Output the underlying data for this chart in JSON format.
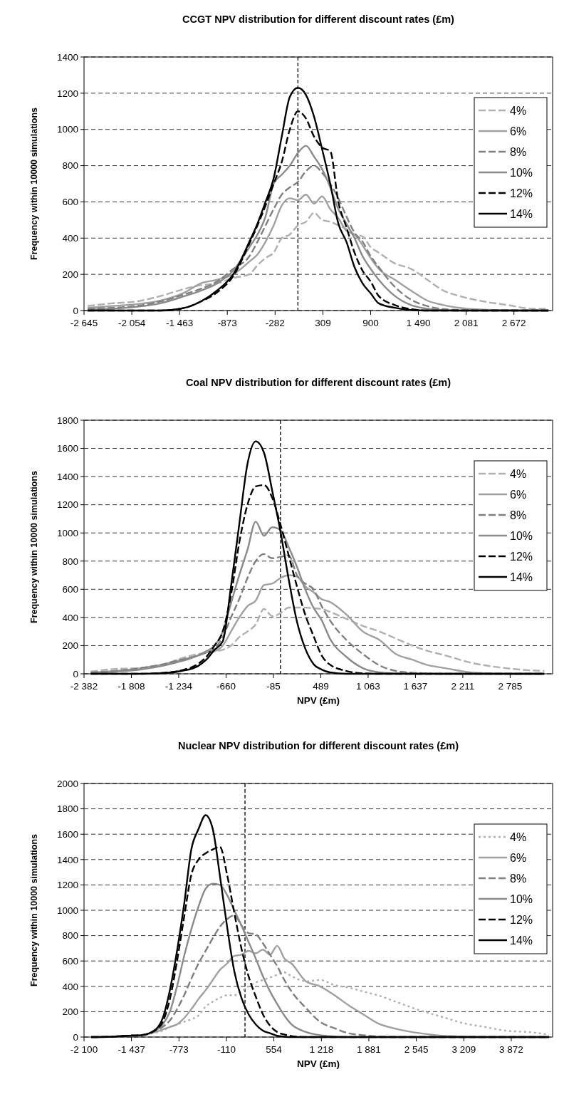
{
  "chart_data": [
    {
      "type": "line",
      "title": "CCGT NPV distribution for different discount rates (£m)",
      "ylabel": "Frequency within 10000 simulations",
      "x": [
        -2600,
        -2300,
        -2000,
        -1700,
        -1400,
        -1200,
        -1000,
        -800,
        -600,
        -500,
        -400,
        -300,
        -200,
        -100,
        0,
        100,
        200,
        300,
        400,
        500,
        600,
        700,
        800,
        900,
        1000,
        1200,
        1400,
        1600,
        1800,
        2000,
        2300,
        2600,
        2900,
        3100
      ],
      "series": [
        {
          "name": "4%",
          "color": "#b0b0b0",
          "line_style": "dashed",
          "values": [
            25,
            40,
            50,
            80,
            120,
            140,
            150,
            180,
            200,
            250,
            290,
            320,
            400,
            420,
            470,
            490,
            540,
            500,
            490,
            470,
            450,
            420,
            410,
            350,
            320,
            260,
            230,
            170,
            110,
            80,
            50,
            30,
            10,
            10
          ]
        },
        {
          "name": "6%",
          "color": "#a0a0a0",
          "line_style": "solid",
          "values": [
            15,
            25,
            35,
            55,
            100,
            150,
            170,
            200,
            270,
            310,
            380,
            470,
            580,
            620,
            610,
            640,
            590,
            630,
            560,
            510,
            440,
            420,
            360,
            290,
            230,
            170,
            110,
            55,
            30,
            15,
            5,
            2,
            0,
            0
          ]
        },
        {
          "name": "8%",
          "color": "#7f7f7f",
          "line_style": "dashed",
          "values": [
            10,
            15,
            25,
            50,
            90,
            120,
            160,
            230,
            300,
            380,
            470,
            560,
            640,
            680,
            710,
            770,
            800,
            760,
            700,
            620,
            520,
            430,
            380,
            300,
            240,
            130,
            60,
            25,
            8,
            3,
            0,
            0,
            0,
            0
          ]
        },
        {
          "name": "10%",
          "color": "#8a8a8a",
          "line_style": "solid",
          "values": [
            5,
            10,
            20,
            40,
            80,
            110,
            150,
            220,
            350,
            420,
            520,
            700,
            750,
            800,
            870,
            910,
            850,
            780,
            680,
            560,
            480,
            400,
            300,
            230,
            170,
            80,
            30,
            10,
            3,
            0,
            0,
            0,
            0,
            0
          ]
        },
        {
          "name": "12%",
          "color": "#000000",
          "line_style": "dashed",
          "values": [
            0,
            0,
            0,
            0,
            15,
            50,
            100,
            190,
            370,
            470,
            580,
            700,
            820,
            1000,
            1100,
            1060,
            960,
            900,
            880,
            600,
            460,
            320,
            220,
            160,
            80,
            30,
            8,
            0,
            0,
            0,
            0,
            0,
            0,
            0
          ]
        },
        {
          "name": "14%",
          "color": "#000000",
          "line_style": "solid",
          "values": [
            0,
            0,
            0,
            0,
            15,
            50,
            110,
            200,
            380,
            480,
            600,
            730,
            960,
            1180,
            1230,
            1190,
            1070,
            890,
            700,
            480,
            380,
            240,
            150,
            95,
            40,
            15,
            3,
            0,
            0,
            0,
            0,
            0,
            0,
            0
          ]
        }
      ],
      "xlim": [
        -2645,
        3150
      ],
      "xticks": [
        {
          "value": -2645,
          "label": "-2 645"
        },
        {
          "value": -2054,
          "label": "-2 054"
        },
        {
          "value": -1463,
          "label": "-1 463"
        },
        -873,
        -282,
        309,
        900,
        {
          "value": 1490,
          "label": "1 490"
        },
        {
          "value": 2081,
          "label": "2 081"
        },
        {
          "value": 2672,
          "label": "2 672"
        }
      ],
      "ylim": [
        0,
        1400
      ],
      "yticks": [
        0,
        200,
        400,
        600,
        800,
        1000,
        1200,
        1400
      ],
      "grid": "y",
      "legend": "right",
      "ref_lines": [
        {
          "axis": "x",
          "value": 0,
          "color": "#000000",
          "line_style": "dashed"
        }
      ]
    },
    {
      "type": "line",
      "title": "Coal NPV distribution for different discount rates (£m)",
      "xlabel": "NPV (£m)",
      "ylabel": "Frequency within 10000 simulations",
      "x": [
        -2300,
        -2000,
        -1700,
        -1400,
        -1200,
        -1000,
        -900,
        -800,
        -700,
        -600,
        -500,
        -400,
        -300,
        -200,
        -100,
        0,
        100,
        200,
        300,
        400,
        500,
        600,
        800,
        1000,
        1200,
        1400,
        1600,
        1800,
        2000,
        2300,
        2600,
        2900,
        3200
      ],
      "series": [
        {
          "name": "4%",
          "color": "#b0b0b0",
          "line_style": "dashed",
          "values": [
            15,
            35,
            40,
            70,
            110,
            140,
            150,
            160,
            170,
            200,
            260,
            300,
            350,
            460,
            410,
            430,
            470,
            470,
            470,
            465,
            460,
            440,
            390,
            340,
            300,
            250,
            200,
            160,
            130,
            80,
            50,
            30,
            20
          ]
        },
        {
          "name": "6%",
          "color": "#a0a0a0",
          "line_style": "solid",
          "values": [
            8,
            20,
            40,
            70,
            100,
            130,
            150,
            160,
            200,
            300,
            400,
            480,
            520,
            630,
            640,
            680,
            700,
            690,
            620,
            580,
            530,
            510,
            420,
            300,
            240,
            140,
            100,
            60,
            40,
            10,
            2,
            0,
            0
          ]
        },
        {
          "name": "8%",
          "color": "#7f7f7f",
          "line_style": "dashed",
          "values": [
            10,
            20,
            40,
            70,
            100,
            130,
            150,
            180,
            260,
            400,
            530,
            680,
            800,
            850,
            820,
            830,
            840,
            700,
            640,
            600,
            480,
            380,
            240,
            140,
            60,
            20,
            8,
            2,
            0,
            0,
            0,
            0,
            0
          ]
        },
        {
          "name": "10%",
          "color": "#8a8a8a",
          "line_style": "solid",
          "values": [
            5,
            15,
            30,
            60,
            90,
            130,
            160,
            200,
            300,
            500,
            700,
            880,
            1080,
            980,
            1040,
            1020,
            900,
            760,
            600,
            470,
            380,
            250,
            120,
            40,
            10,
            3,
            0,
            0,
            0,
            0,
            0,
            0,
            0
          ]
        },
        {
          "name": "12%",
          "color": "#000000",
          "line_style": "dashed",
          "values": [
            0,
            0,
            0,
            8,
            25,
            70,
            120,
            200,
            300,
            560,
            930,
            1200,
            1330,
            1340,
            1250,
            1060,
            840,
            620,
            420,
            270,
            130,
            65,
            20,
            3,
            0,
            0,
            0,
            0,
            0,
            0,
            0,
            0,
            0
          ]
        },
        {
          "name": "14%",
          "color": "#000000",
          "line_style": "solid",
          "values": [
            0,
            0,
            0,
            5,
            20,
            55,
            100,
            170,
            230,
            620,
            1060,
            1490,
            1650,
            1570,
            1300,
            1010,
            670,
            370,
            180,
            70,
            30,
            10,
            0,
            0,
            0,
            0,
            0,
            0,
            0,
            0,
            0,
            0,
            0
          ]
        }
      ],
      "xlim": [
        -2382,
        3300
      ],
      "xticks": [
        {
          "value": -2382,
          "label": "-2 382"
        },
        {
          "value": -1808,
          "label": "-1 808"
        },
        {
          "value": -1234,
          "label": "-1 234"
        },
        -660,
        -85,
        489,
        {
          "value": 1063,
          "label": "1 063"
        },
        {
          "value": 1637,
          "label": "1 637"
        },
        {
          "value": 2211,
          "label": "2 211"
        },
        {
          "value": 2785,
          "label": "2 785"
        }
      ],
      "ylim": [
        0,
        1800
      ],
      "yticks": [
        0,
        200,
        400,
        600,
        800,
        1000,
        1200,
        1400,
        1600,
        1800
      ],
      "grid": "y",
      "legend": "right",
      "ref_lines": [
        {
          "axis": "x",
          "value": 0,
          "color": "#000000",
          "line_style": "dashed"
        }
      ]
    },
    {
      "type": "line",
      "title": "Nuclear NPV distribution for different discount rates (£m)",
      "xlabel": "NPV (£m)",
      "ylabel": "Frequency within 10000 simulations",
      "x": [
        -2000,
        -1700,
        -1500,
        -1300,
        -1100,
        -1000,
        -900,
        -800,
        -700,
        -600,
        -500,
        -400,
        -300,
        -200,
        -100,
        0,
        100,
        200,
        300,
        400,
        500,
        600,
        700,
        800,
        1000,
        1200,
        1400,
        1600,
        1800,
        2000,
        2300,
        2600,
        2900,
        3200,
        3500,
        3800,
        4100,
        4400
      ],
      "series": [
        {
          "name": "4%",
          "color": "#b0b0b0",
          "line_style": "dotted",
          "values": [
            0,
            3,
            10,
            15,
            35,
            50,
            80,
            100,
            120,
            140,
            170,
            240,
            280,
            310,
            330,
            330,
            360,
            400,
            430,
            450,
            470,
            490,
            510,
            480,
            440,
            450,
            410,
            390,
            360,
            330,
            270,
            210,
            160,
            110,
            80,
            50,
            40,
            20
          ]
        },
        {
          "name": "6%",
          "color": "#a0a0a0",
          "line_style": "solid",
          "values": [
            0,
            3,
            10,
            15,
            40,
            60,
            80,
            100,
            150,
            220,
            300,
            370,
            450,
            530,
            580,
            640,
            650,
            680,
            660,
            690,
            650,
            720,
            620,
            580,
            440,
            400,
            330,
            250,
            180,
            110,
            60,
            30,
            10,
            5,
            0,
            0,
            0,
            0
          ]
        },
        {
          "name": "8%",
          "color": "#7f7f7f",
          "line_style": "dashed",
          "values": [
            0,
            3,
            10,
            15,
            50,
            80,
            130,
            220,
            330,
            460,
            580,
            680,
            780,
            870,
            930,
            960,
            880,
            820,
            810,
            740,
            650,
            560,
            450,
            360,
            230,
            120,
            70,
            30,
            15,
            5,
            0,
            0,
            0,
            0,
            0,
            0,
            0,
            0
          ]
        },
        {
          "name": "10%",
          "color": "#8a8a8a",
          "line_style": "solid",
          "values": [
            0,
            3,
            10,
            15,
            50,
            100,
            200,
            400,
            640,
            850,
            1030,
            1170,
            1210,
            1200,
            1120,
            1000,
            880,
            750,
            620,
            480,
            360,
            260,
            170,
            100,
            40,
            15,
            5,
            0,
            0,
            0,
            0,
            0,
            0,
            0,
            0,
            0,
            0,
            0
          ]
        },
        {
          "name": "12%",
          "color": "#000000",
          "line_style": "dashed",
          "values": [
            0,
            3,
            10,
            15,
            55,
            120,
            300,
            600,
            950,
            1280,
            1400,
            1450,
            1480,
            1500,
            1280,
            980,
            700,
            480,
            320,
            180,
            90,
            40,
            20,
            8,
            0,
            0,
            0,
            0,
            0,
            0,
            0,
            0,
            0,
            0,
            0,
            0,
            0,
            0
          ]
        },
        {
          "name": "14%",
          "color": "#000000",
          "line_style": "solid",
          "values": [
            0,
            3,
            10,
            15,
            60,
            150,
            370,
            680,
            1050,
            1480,
            1640,
            1750,
            1640,
            1270,
            870,
            520,
            310,
            180,
            100,
            50,
            30,
            10,
            3,
            0,
            0,
            0,
            0,
            0,
            0,
            0,
            0,
            0,
            0,
            0,
            0,
            0,
            0,
            0
          ]
        }
      ],
      "xlim": [
        -2100,
        4450
      ],
      "xticks": [
        {
          "value": -2100,
          "label": "-2 100"
        },
        {
          "value": -1437,
          "label": "-1 437"
        },
        -773,
        -110,
        554,
        {
          "value": 1218,
          "label": "1 218"
        },
        {
          "value": 1881,
          "label": "1 881"
        },
        {
          "value": 2545,
          "label": "2 545"
        },
        {
          "value": 3209,
          "label": "3 209"
        },
        {
          "value": 3872,
          "label": "3 872"
        }
      ],
      "ylim": [
        0,
        2000
      ],
      "yticks": [
        0,
        200,
        400,
        600,
        800,
        1000,
        1200,
        1400,
        1600,
        1800,
        2000
      ],
      "grid": "y",
      "legend": "right",
      "ref_lines": [
        {
          "axis": "x",
          "value": 150,
          "color": "#000000",
          "line_style": "dashed"
        }
      ]
    }
  ]
}
